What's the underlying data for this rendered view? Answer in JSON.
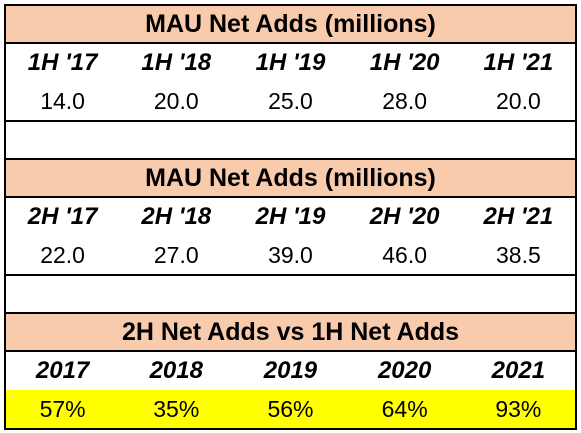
{
  "sections": [
    {
      "title": "MAU Net Adds (millions)",
      "headers": [
        "1H '17",
        "1H '18",
        "1H '19",
        "1H '20",
        "1H '21"
      ],
      "values": [
        "14.0",
        "20.0",
        "25.0",
        "28.0",
        "20.0"
      ]
    },
    {
      "title": "MAU Net Adds (millions)",
      "headers": [
        "2H '17",
        "2H '18",
        "2H '19",
        "2H '20",
        "2H '21"
      ],
      "values": [
        "22.0",
        "27.0",
        "39.0",
        "46.0",
        "38.5"
      ]
    },
    {
      "title": "2H Net Adds vs 1H Net Adds",
      "headers": [
        "2017",
        "2018",
        "2019",
        "2020",
        "2021"
      ],
      "values": [
        "57%",
        "35%",
        "56%",
        "64%",
        "93%"
      ],
      "highlight_color": "#ffff00"
    }
  ],
  "colors": {
    "title_fill": "#f8cbad",
    "highlight": "#ffff00",
    "border": "#000000"
  }
}
